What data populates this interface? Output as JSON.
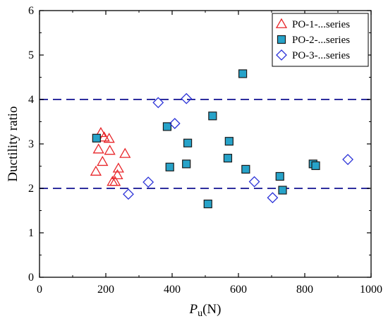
{
  "chart_data": {
    "type": "scatter",
    "title": "",
    "xlabel_main": "P",
    "xlabel_sub": "u",
    "xlabel_unit": "(N)",
    "ylabel": "Ductility ratio",
    "xlim": [
      0,
      1000
    ],
    "ylim": [
      0,
      6
    ],
    "x_ticks": [
      "0",
      "200",
      "400",
      "600",
      "800",
      "1000"
    ],
    "y_ticks": [
      "0",
      "1",
      "2",
      "3",
      "4",
      "5",
      "6"
    ],
    "grid": false,
    "legend_position": "top-right",
    "reference_lines": {
      "y": [
        2,
        4
      ],
      "style": "dashed",
      "color": "#2e2e9e"
    },
    "series": [
      {
        "name": "PO-1-...series",
        "marker": "triangle",
        "color": "#e8262a",
        "filled": false,
        "points": [
          [
            170,
            2.38
          ],
          [
            178,
            2.88
          ],
          [
            185,
            3.25
          ],
          [
            190,
            2.6
          ],
          [
            195,
            3.15
          ],
          [
            210,
            3.12
          ],
          [
            212,
            2.85
          ],
          [
            220,
            2.15
          ],
          [
            228,
            2.15
          ],
          [
            235,
            2.3
          ],
          [
            238,
            2.45
          ],
          [
            258,
            2.78
          ]
        ]
      },
      {
        "name": "PO-2-...series",
        "marker": "square",
        "color": "#27a3c9",
        "filled": true,
        "points": [
          [
            172,
            3.13
          ],
          [
            385,
            3.39
          ],
          [
            393,
            2.48
          ],
          [
            443,
            2.55
          ],
          [
            447,
            3.02
          ],
          [
            508,
            1.65
          ],
          [
            522,
            3.63
          ],
          [
            568,
            2.68
          ],
          [
            572,
            3.06
          ],
          [
            613,
            4.58
          ],
          [
            622,
            2.43
          ],
          [
            725,
            2.27
          ],
          [
            733,
            1.96
          ],
          [
            825,
            2.55
          ],
          [
            833,
            2.51
          ]
        ]
      },
      {
        "name": "PO-3-...series",
        "marker": "diamond",
        "color": "#2b32d8",
        "filled": false,
        "points": [
          [
            268,
            1.87
          ],
          [
            328,
            2.14
          ],
          [
            358,
            3.93
          ],
          [
            408,
            3.46
          ],
          [
            443,
            4.02
          ],
          [
            648,
            2.15
          ],
          [
            703,
            1.79
          ],
          [
            930,
            2.65
          ]
        ]
      }
    ]
  }
}
